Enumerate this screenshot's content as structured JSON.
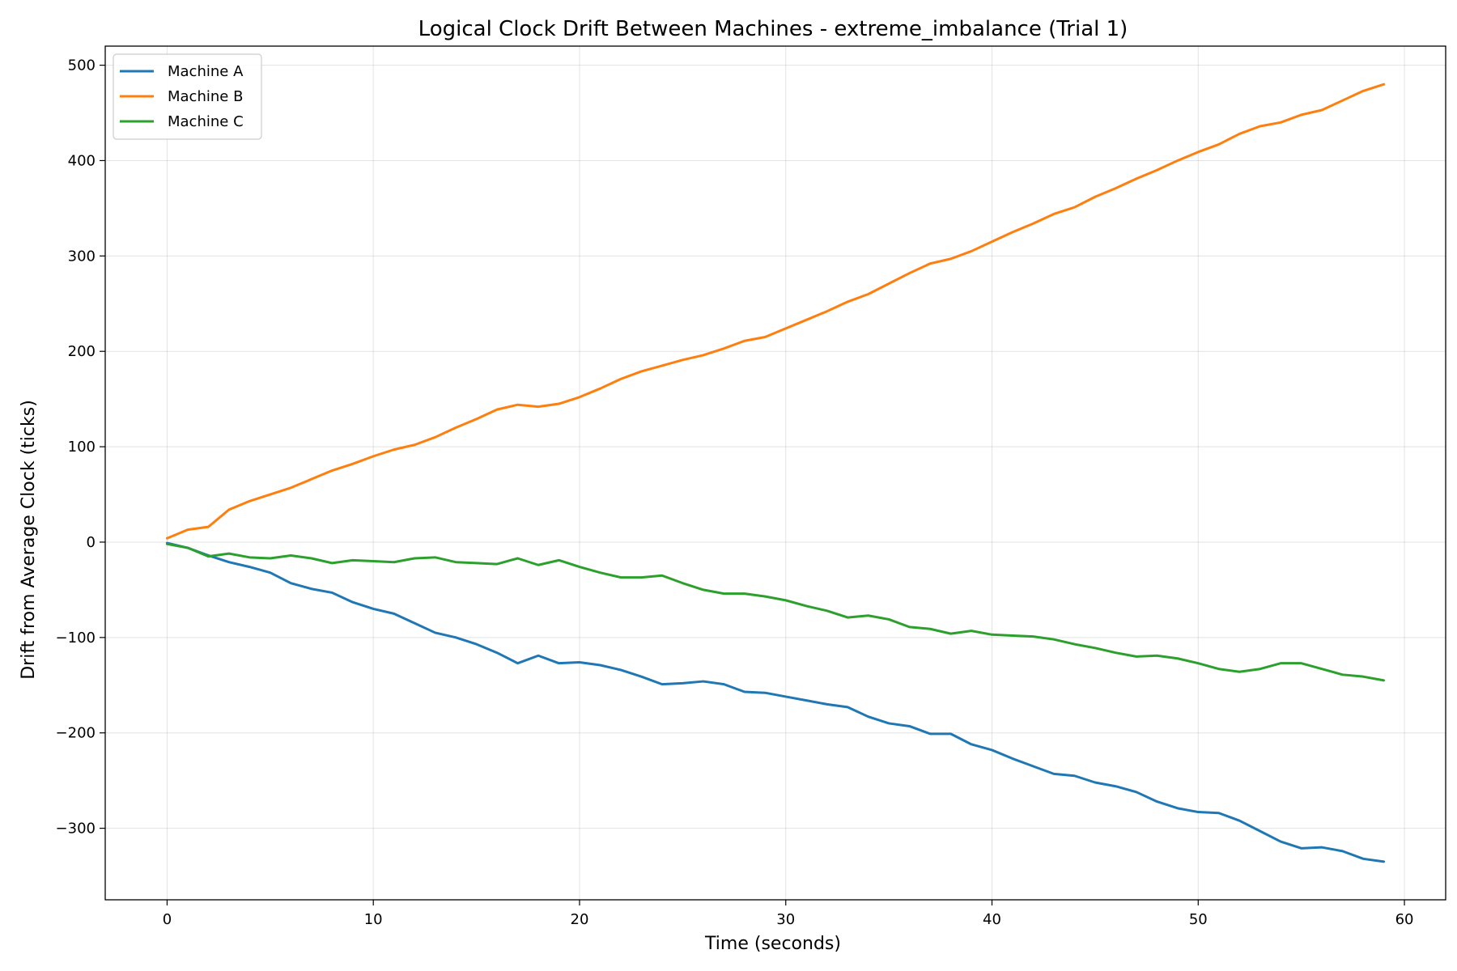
{
  "chart_data": {
    "type": "line",
    "title": "Logical Clock Drift Between Machines - extreme_imbalance (Trial 1)",
    "xlabel": "Time (seconds)",
    "ylabel": "Drift from Average Clock (ticks)",
    "xlim": [
      -3,
      62
    ],
    "ylim": [
      -375,
      520
    ],
    "xticks": [
      0,
      10,
      20,
      30,
      40,
      50,
      60
    ],
    "xtick_labels": [
      "0",
      "10",
      "20",
      "30",
      "40",
      "50",
      "60"
    ],
    "yticks": [
      -300,
      -200,
      -100,
      0,
      100,
      200,
      300,
      400,
      500
    ],
    "ytick_labels": [
      "−300",
      "−200",
      "−100",
      "0",
      "100",
      "200",
      "300",
      "400",
      "500"
    ],
    "grid": true,
    "legend_position": "top-left",
    "x": [
      0,
      1,
      2,
      3,
      4,
      5,
      6,
      7,
      8,
      9,
      10,
      11,
      12,
      13,
      14,
      15,
      16,
      17,
      18,
      19,
      20,
      21,
      22,
      23,
      24,
      25,
      26,
      27,
      28,
      29,
      30,
      31,
      32,
      33,
      34,
      35,
      36,
      37,
      38,
      39,
      40,
      41,
      42,
      43,
      44,
      45,
      46,
      47,
      48,
      49,
      50,
      51,
      52,
      53,
      54,
      55,
      56,
      57,
      58,
      59
    ],
    "series": [
      {
        "name": "Machine A",
        "color": "#1f77b4",
        "values": [
          -1,
          -6,
          -14,
          -21,
          -26,
          -32,
          -43,
          -49,
          -53,
          -63,
          -70,
          -75,
          -85,
          -95,
          -100,
          -107,
          -116,
          -127,
          -119,
          -127,
          -126,
          -129,
          -134,
          -141,
          -149,
          -148,
          -146,
          -149,
          -157,
          -158,
          -162,
          -166,
          -170,
          -173,
          -183,
          -190,
          -193,
          -201,
          -201,
          -212,
          -218,
          -227,
          -235,
          -243,
          -245,
          -252,
          -256,
          -262,
          -272,
          -279,
          -283,
          -284,
          -292,
          -303,
          -314,
          -321,
          -320,
          -324,
          -332,
          -335
        ]
      },
      {
        "name": "Machine B",
        "color": "#ff7f0e",
        "values": [
          4,
          13,
          16,
          34,
          43,
          50,
          57,
          66,
          75,
          82,
          90,
          97,
          102,
          110,
          120,
          129,
          139,
          144,
          142,
          145,
          152,
          161,
          171,
          179,
          185,
          191,
          196,
          203,
          211,
          215,
          224,
          233,
          242,
          252,
          260,
          271,
          282,
          292,
          297,
          305,
          315,
          325,
          334,
          344,
          351,
          362,
          371,
          381,
          390,
          400,
          409,
          417,
          428,
          436,
          440,
          448,
          453,
          463,
          473,
          480
        ]
      },
      {
        "name": "Machine C",
        "color": "#2ca02c",
        "values": [
          -2,
          -6,
          -15,
          -12,
          -16,
          -17,
          -14,
          -17,
          -22,
          -19,
          -20,
          -21,
          -17,
          -16,
          -21,
          -22,
          -23,
          -17,
          -24,
          -19,
          -26,
          -32,
          -37,
          -37,
          -35,
          -43,
          -50,
          -54,
          -54,
          -57,
          -61,
          -67,
          -72,
          -79,
          -77,
          -81,
          -89,
          -91,
          -96,
          -93,
          -97,
          -98,
          -99,
          -102,
          -107,
          -111,
          -116,
          -120,
          -119,
          -122,
          -127,
          -133,
          -136,
          -133,
          -127,
          -127,
          -133,
          -139,
          -141,
          -145
        ]
      }
    ]
  }
}
